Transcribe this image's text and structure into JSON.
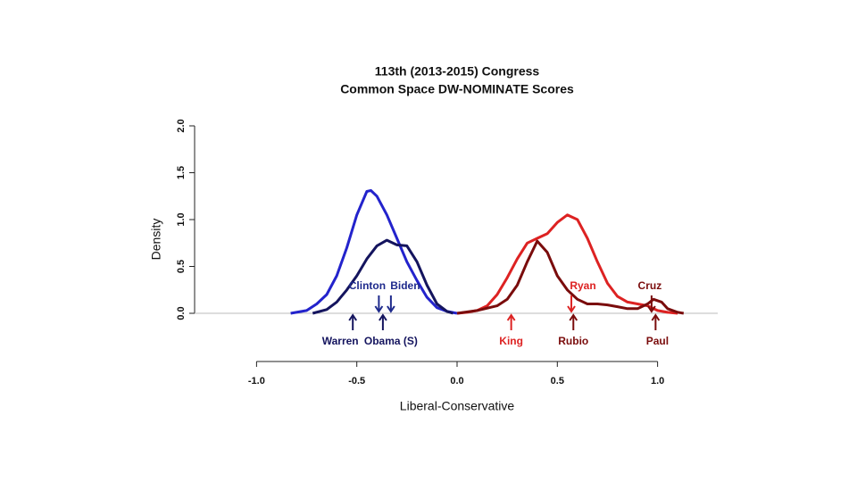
{
  "chart_data": {
    "type": "line",
    "title": "113th (2013-2015) Congress",
    "subtitle": "Common Space DW-NOMINATE Scores",
    "x_label": "Liberal-Conservative",
    "y_label": "Density",
    "xlim": [
      -1.3,
      1.3
    ],
    "ylim": [
      0,
      2
    ],
    "xticks": [
      {
        "value": -1,
        "label": "-1.0"
      },
      {
        "value": -0.5,
        "label": "-0.5"
      },
      {
        "value": 0,
        "label": "0.0"
      },
      {
        "value": 0.5,
        "label": "0.5"
      },
      {
        "value": 1,
        "label": "1.0"
      }
    ],
    "yticks": [
      {
        "value": 0,
        "label": "0.0"
      },
      {
        "value": 0.5,
        "label": "0.5"
      },
      {
        "value": 1,
        "label": "1.0"
      },
      {
        "value": 1.5,
        "label": "1.5"
      },
      {
        "value": 2,
        "label": "2.0"
      }
    ],
    "series": [
      {
        "color": "#2323cc",
        "x": [
          -0.83,
          -0.75,
          -0.7,
          -0.65,
          -0.6,
          -0.55,
          -0.5,
          -0.45,
          -0.43,
          -0.4,
          -0.35,
          -0.3,
          -0.25,
          -0.2,
          -0.15,
          -0.1,
          -0.05,
          0
        ],
        "values": [
          0,
          0.03,
          0.1,
          0.2,
          0.4,
          0.7,
          1.05,
          1.3,
          1.31,
          1.25,
          1.05,
          0.8,
          0.55,
          0.35,
          0.17,
          0.06,
          0.02,
          0
        ]
      },
      {
        "color": "#14145e",
        "x": [
          -0.72,
          -0.65,
          -0.6,
          -0.55,
          -0.5,
          -0.45,
          -0.4,
          -0.35,
          -0.3,
          -0.25,
          -0.2,
          -0.15,
          -0.1,
          -0.05,
          -0.02
        ],
        "values": [
          0,
          0.04,
          0.12,
          0.25,
          0.4,
          0.58,
          0.72,
          0.78,
          0.73,
          0.72,
          0.55,
          0.3,
          0.1,
          0.02,
          0
        ]
      },
      {
        "color": "#dd2222",
        "x": [
          0,
          0.05,
          0.1,
          0.15,
          0.2,
          0.25,
          0.3,
          0.35,
          0.4,
          0.45,
          0.5,
          0.55,
          0.6,
          0.65,
          0.7,
          0.75,
          0.8,
          0.85,
          0.9,
          0.95,
          1.0,
          1.05,
          1.1
        ],
        "values": [
          0,
          0.01,
          0.03,
          0.08,
          0.2,
          0.38,
          0.58,
          0.75,
          0.8,
          0.85,
          0.97,
          1.05,
          1.0,
          0.8,
          0.55,
          0.32,
          0.18,
          0.12,
          0.1,
          0.08,
          0.03,
          0.01,
          0
        ]
      },
      {
        "color": "#7a0c0c",
        "x": [
          0,
          0.1,
          0.2,
          0.25,
          0.3,
          0.35,
          0.4,
          0.45,
          0.5,
          0.55,
          0.6,
          0.65,
          0.7,
          0.75,
          0.8,
          0.85,
          0.9,
          0.95,
          0.98,
          1.02,
          1.05,
          1.1,
          1.13
        ],
        "values": [
          0,
          0.03,
          0.08,
          0.15,
          0.3,
          0.55,
          0.77,
          0.65,
          0.4,
          0.25,
          0.15,
          0.1,
          0.1,
          0.09,
          0.07,
          0.05,
          0.05,
          0.1,
          0.15,
          0.12,
          0.05,
          0.01,
          0
        ]
      }
    ],
    "annotations": [
      {
        "text": "Warren",
        "x": -0.52,
        "side": "below",
        "color": "#14145e"
      },
      {
        "text": "Obama (S)",
        "x": -0.37,
        "side": "below",
        "color": "#14145e"
      },
      {
        "text": "Clinton",
        "x": -0.39,
        "side": "above",
        "color": "#1e2a8c"
      },
      {
        "text": "Biden",
        "x": -0.33,
        "side": "above",
        "color": "#1e2a8c"
      },
      {
        "text": "King",
        "x": 0.27,
        "side": "below",
        "color": "#dd2222"
      },
      {
        "text": "Ryan",
        "x": 0.57,
        "side": "above",
        "color": "#dd2222"
      },
      {
        "text": "Rubio",
        "x": 0.58,
        "side": "below",
        "color": "#7a0c0c"
      },
      {
        "text": "Cruz",
        "x": 0.97,
        "side": "above",
        "color": "#7a0c0c"
      },
      {
        "text": "Paul",
        "x": 0.99,
        "side": "below",
        "color": "#7a0c0c"
      }
    ]
  }
}
